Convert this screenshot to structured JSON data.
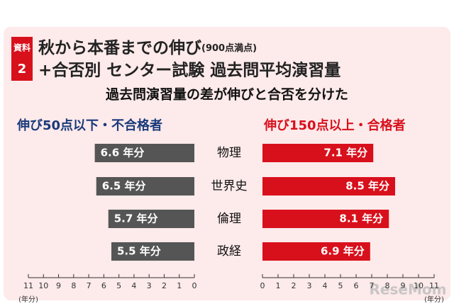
{
  "chart_data": {
    "type": "butterfly",
    "badge": [
      "資料",
      "2"
    ],
    "title": [
      "秋から本番までの伸び",
      "+合否別 センター試験 過去問平均演習量"
    ],
    "title_note": "(900点満点)",
    "subtitle": "過去問演習量の差が伸びと合否を分けた",
    "categories": [
      "物理",
      "世界史",
      "倫理",
      "政経"
    ],
    "series": [
      {
        "name": "伸び50点以下・不合格者",
        "color": "#555555",
        "values": [
          6.6,
          6.5,
          5.7,
          5.5
        ],
        "value_labels": [
          "6.6 年分",
          "6.5 年分",
          "5.7 年分",
          "5.5 年分"
        ]
      },
      {
        "name": "伸び150点以上・合格者",
        "color": "#d8101c",
        "values": [
          7.1,
          8.5,
          8.1,
          6.9
        ],
        "value_labels": [
          "7.1 年分",
          "8.5 年分",
          "8.1 年分",
          "6.9 年分"
        ]
      }
    ],
    "xlim": [
      0,
      11
    ],
    "xticks": [
      0,
      1,
      2,
      3,
      4,
      5,
      6,
      7,
      8,
      9,
      10,
      11
    ],
    "x_label": "(年分)",
    "watermark": "ReseMom"
  }
}
